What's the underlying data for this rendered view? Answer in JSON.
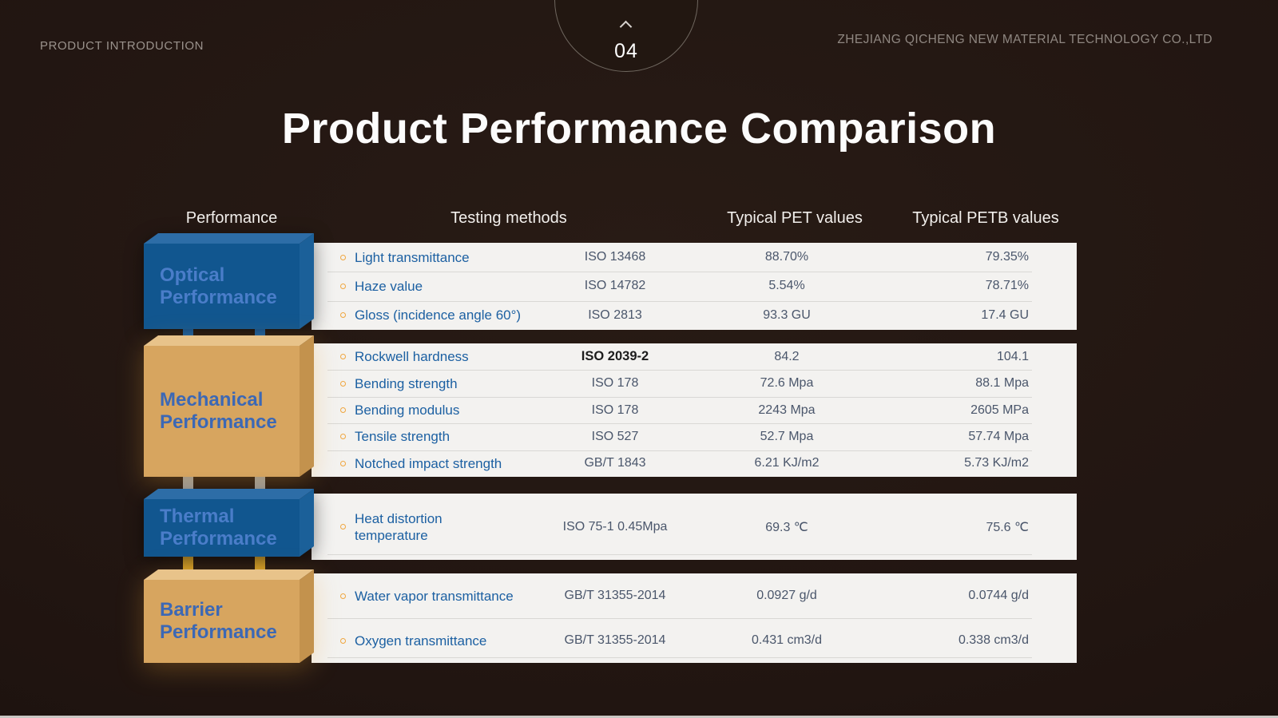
{
  "header": {
    "section_label": "PRODUCT INTRODUCTION",
    "company": "ZHEJIANG QICHENG NEW MATERIAL TECHNOLOGY  CO.,LTD",
    "page_number": "04",
    "chevron_icon": "chevron-up-icon"
  },
  "title": "Product Performance Comparison",
  "table": {
    "columns": {
      "performance": "Performance",
      "testing": "Testing methods",
      "pet": "Typical PET values",
      "petb": "Typical PETB values"
    },
    "sections": [
      {
        "id": "optical",
        "label_line1": "Optical",
        "label_line2": "Performance",
        "theme": "blue",
        "rows": [
          {
            "feature": "Light transmittance",
            "method": "ISO 13468",
            "pet": "88.70%",
            "petb": "79.35%"
          },
          {
            "feature": "Haze value",
            "method": "ISO 14782",
            "pet": "5.54%",
            "petb": "78.71%"
          },
          {
            "feature": "Gloss (incidence angle 60°)",
            "method": "ISO 2813",
            "pet": "93.3 GU",
            "petb": "17.4 GU"
          }
        ]
      },
      {
        "id": "mechanical",
        "label_line1": "Mechanical",
        "label_line2": "Performance",
        "theme": "tan",
        "rows": [
          {
            "feature": "Rockwell hardness",
            "method": "ISO 2039-2",
            "pet": "84.2",
            "petb": "104.1"
          },
          {
            "feature": "Bending strength",
            "method": "ISO 178",
            "pet": "72.6 Mpa",
            "petb": "88.1 Mpa"
          },
          {
            "feature": "Bending modulus",
            "method": "ISO 178",
            "pet": "2243 Mpa",
            "petb": "2605 MPa"
          },
          {
            "feature": "Tensile strength",
            "method": "ISO 527",
            "pet": "52.7 Mpa",
            "petb": "57.74 Mpa"
          },
          {
            "feature": "Notched impact strength",
            "method": "GB/T 1843",
            "pet": "6.21 KJ/m2",
            "petb": "5.73 KJ/m2"
          }
        ]
      },
      {
        "id": "thermal",
        "label_line1": "Thermal",
        "label_line2": "Performance",
        "theme": "blue",
        "rows": [
          {
            "feature": "Heat distortion temperature",
            "method": "ISO 75-1 0.45Mpa",
            "pet": "69.3 ℃",
            "petb": "75.6 ℃"
          }
        ]
      },
      {
        "id": "barrier",
        "label_line1": "Barrier",
        "label_line2": "Performance",
        "theme": "tan",
        "rows": [
          {
            "feature": "Water vapor transmittance",
            "method": "GB/T 31355-2014",
            "pet": "0.0927 g/d",
            "petb": "0.0744 g/d"
          },
          {
            "feature": "Oxygen transmittance",
            "method": "GB/T 31355-2014",
            "pet": "0.431 cm3/d",
            "petb": "0.338 cm3/d"
          }
        ]
      }
    ]
  },
  "colors": {
    "background": "#211511",
    "panel": "#f3f2f0",
    "box_blue": "#11568f",
    "box_tan": "#d7a55f",
    "box_label_blue": "#4a7dc9",
    "feature_text": "#1c60a2",
    "value_text": "#4a566b",
    "bullet_gold": "#f0a63e",
    "connector_blue": "#1a6fc0",
    "connector_gray": "#a6a6a6",
    "connector_gold": "#f6b51f"
  }
}
